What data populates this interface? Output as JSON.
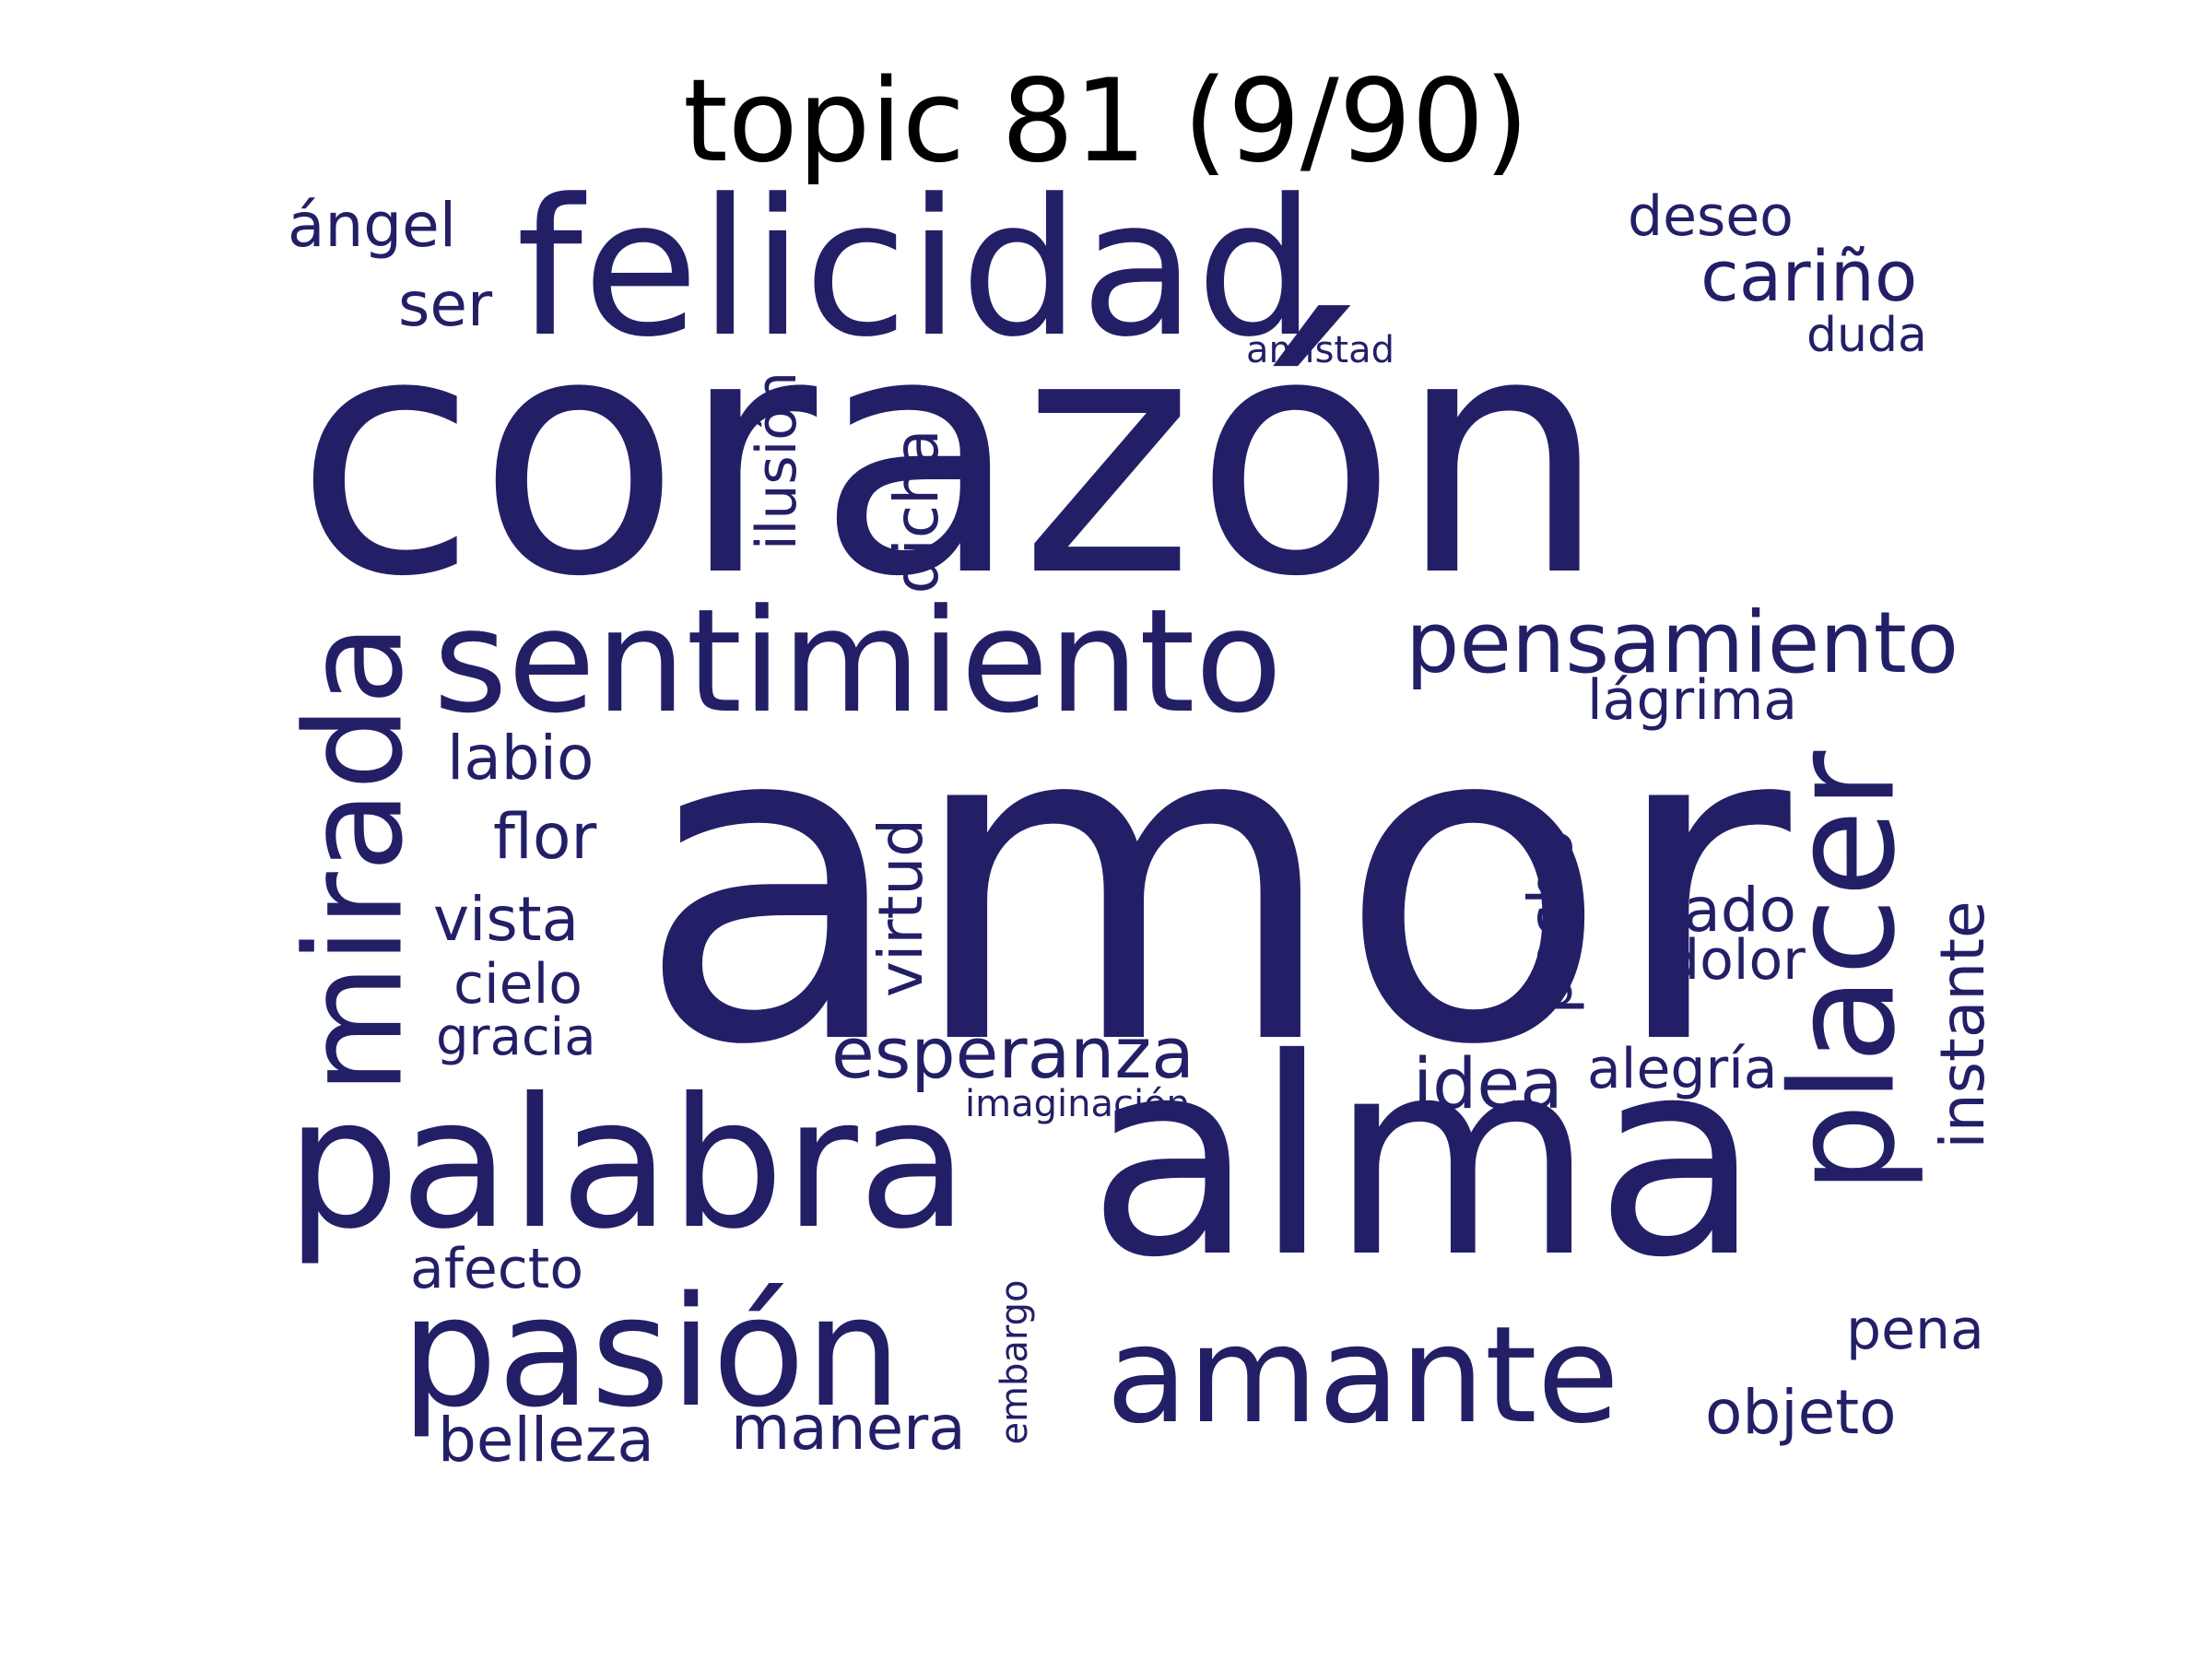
{
  "title": "topic 81 (9/90)",
  "word_color": "#231f67",
  "words": {
    "corazon": "corazón",
    "amor": "amor",
    "alma": "alma",
    "felicidad": "felicidad",
    "sentimiento": "sentimiento",
    "palabra": "palabra",
    "pasion": "pasión",
    "amante": "amante",
    "mirada": "mirada",
    "placer": "placer",
    "pensamiento": "pensamiento",
    "esperanza": "esperanza",
    "angel": "ángel",
    "ser": "ser",
    "deseo": "deseo",
    "carino": "cariño",
    "duda": "duda",
    "amistad": "amistad",
    "ilusion": "ilusión",
    "dicha": "dicha",
    "lagrima": "lágrima",
    "labio": "labio",
    "flor": "flor",
    "vista": "vista",
    "cielo": "cielo",
    "gracia": "gracia",
    "virtud": "virtud",
    "pecho": "pecho",
    "lado": "lado",
    "dolor": "dolor",
    "instante": "instante",
    "idea": "idea",
    "alegria": "alegría",
    "imaginacion": "imaginación",
    "afecto": "afecto",
    "embargo": "embargo",
    "belleza": "belleza",
    "manera": "manera",
    "objeto": "objeto",
    "pena": "pena"
  }
}
